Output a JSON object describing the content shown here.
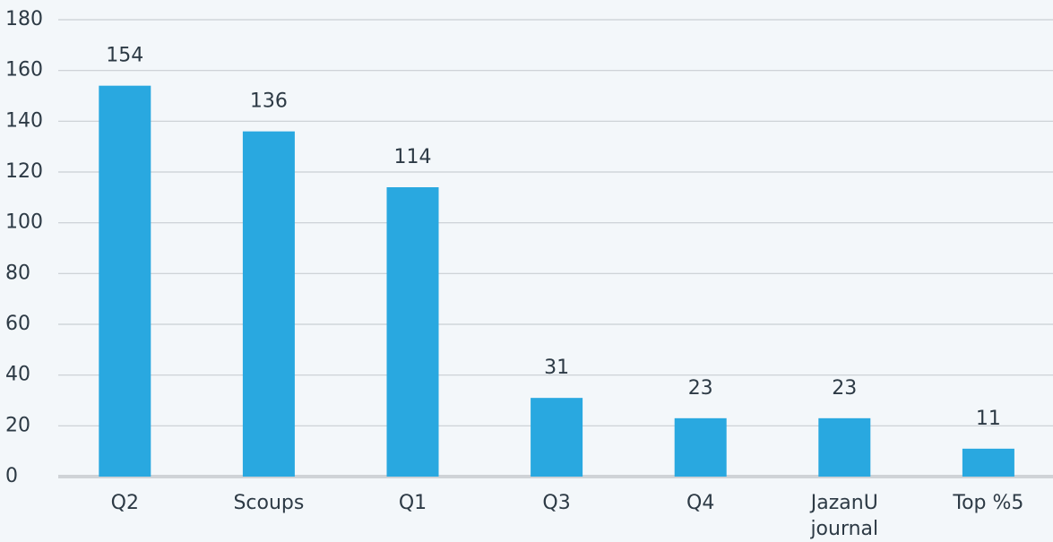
{
  "chart_data": {
    "type": "bar",
    "categories": [
      "Q2",
      "Scoups",
      "Q1",
      "Q3",
      "Q4",
      "JazanU journal",
      "Top %5"
    ],
    "values": [
      154,
      136,
      114,
      31,
      23,
      23,
      11
    ],
    "color": "#29a8e0",
    "ylim": [
      0,
      180
    ],
    "yticks": [
      0,
      20,
      40,
      60,
      80,
      100,
      120,
      140,
      160,
      180
    ],
    "grid": true
  }
}
